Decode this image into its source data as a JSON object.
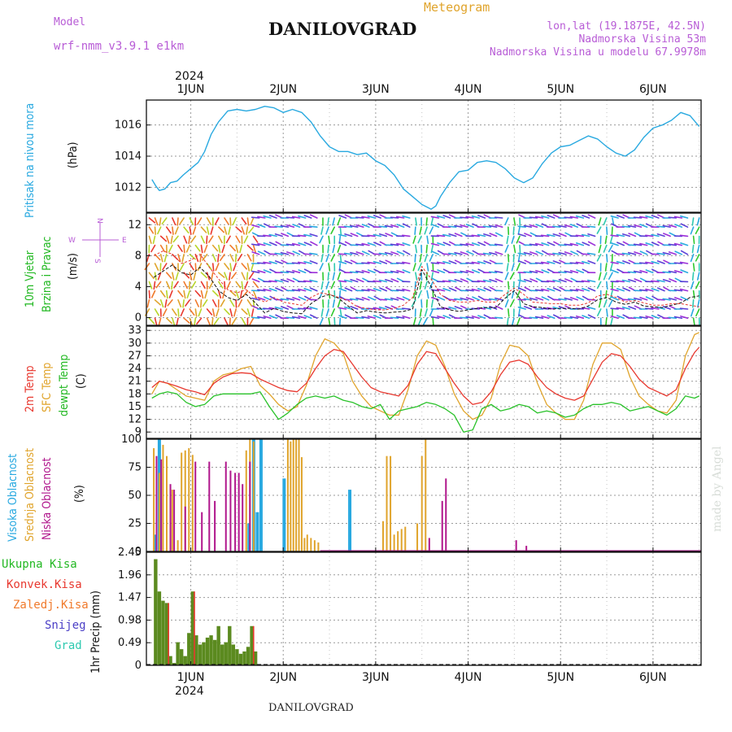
{
  "header": {
    "model_label": "Model",
    "model_name": "wrf-nmm_v3.9.1 e1km",
    "station": "DANILOVGRAD",
    "product": "Meteogram",
    "lonlat": "lon,lat (19.1875E, 42.5N)",
    "altitude": "Nadmorska Visina 53m",
    "model_altitude": "Nadmorska Visina u modelu 67.9978m",
    "credit": "made by Angel",
    "footer_station": "DANILOVGRAD"
  },
  "colors": {
    "pressure": "#29a9e0",
    "t2m": "#e8382f",
    "tsfc": "#e0a42c",
    "dewpt": "#29c229",
    "high_cloud": "#29a9e0",
    "mid_cloud": "#e0a42c",
    "low_cloud": "#b0168c",
    "total_precip": "#5b8a1f",
    "convective": "#e8382f",
    "frozen": "#f07a2c",
    "snow": "#4b3fc6",
    "hail": "#2ec9b0",
    "wind_label": "#22b822",
    "windrose": "#b85cd6"
  },
  "time_axis": {
    "year": "2024",
    "day_labels": [
      "1JUN",
      "2JUN",
      "3JUN",
      "4JUN",
      "5JUN",
      "6JUN"
    ]
  },
  "windrose": {
    "n": "N",
    "s": "S",
    "e": "E",
    "w": "W"
  },
  "chart_data": [
    {
      "type": "line",
      "panel": "pressure",
      "ylabel_main": "Pritisak na nivou mora",
      "unit": "(hPa)",
      "yticks": [
        "1012",
        "1014",
        "1016"
      ],
      "ylim": [
        1010.4,
        1017.6
      ],
      "x": [
        0.58,
        0.62,
        0.66,
        0.72,
        0.78,
        0.85,
        0.92,
        1.0,
        1.08,
        1.15,
        1.22,
        1.3,
        1.4,
        1.5,
        1.6,
        1.7,
        1.8,
        1.9,
        2.0,
        2.1,
        2.2,
        2.3,
        2.4,
        2.5,
        2.6,
        2.7,
        2.8,
        2.9,
        3.0,
        3.1,
        3.2,
        3.3,
        3.4,
        3.5,
        3.6,
        3.65,
        3.7,
        3.8,
        3.9,
        4.0,
        4.1,
        4.2,
        4.3,
        4.4,
        4.5,
        4.6,
        4.7,
        4.8,
        4.9,
        5.0,
        5.1,
        5.2,
        5.3,
        5.4,
        5.5,
        5.6,
        5.7,
        5.8,
        5.9,
        6.0,
        6.1,
        6.2,
        6.3,
        6.4,
        6.5
      ],
      "values": [
        1012.5,
        1012.1,
        1011.8,
        1011.9,
        1012.3,
        1012.4,
        1012.8,
        1013.2,
        1013.6,
        1014.3,
        1015.4,
        1016.2,
        1016.9,
        1017.0,
        1016.9,
        1017.0,
        1017.2,
        1017.1,
        1016.8,
        1017.0,
        1016.8,
        1016.2,
        1015.3,
        1014.6,
        1014.3,
        1014.3,
        1014.1,
        1014.2,
        1013.7,
        1013.4,
        1012.8,
        1011.9,
        1011.4,
        1010.9,
        1010.6,
        1010.8,
        1011.4,
        1012.3,
        1013.0,
        1013.1,
        1013.6,
        1013.7,
        1013.6,
        1013.2,
        1012.6,
        1012.3,
        1012.6,
        1013.5,
        1014.2,
        1014.6,
        1014.7,
        1015.0,
        1015.3,
        1015.1,
        1014.6,
        1014.2,
        1014.0,
        1014.4,
        1015.2,
        1015.8,
        1016.0,
        1016.3,
        1016.8,
        1016.6,
        1015.9
      ],
      "series": [
        {
          "name": "Pritisak na nivou mora"
        }
      ]
    },
    {
      "type": "line",
      "panel": "wind",
      "ylabel_main": "10m Vjetar",
      "ylabel_sub": "Brzina i Pravac",
      "unit": "(m/s)",
      "yticks": [
        "0",
        "4",
        "8",
        "12"
      ],
      "ylim": [
        -1,
        13.5
      ],
      "x": [
        0.6,
        0.7,
        0.8,
        0.9,
        1.0,
        1.1,
        1.2,
        1.3,
        1.4,
        1.5,
        1.6,
        1.7,
        1.8,
        1.9,
        2.0,
        2.1,
        2.2,
        2.3,
        2.4,
        2.5,
        2.6,
        2.7,
        2.8,
        2.9,
        3.0,
        3.1,
        3.2,
        3.3,
        3.4,
        3.5,
        3.6,
        3.7,
        3.8,
        3.9,
        4.0,
        4.1,
        4.2,
        4.3,
        4.4,
        4.5,
        4.6,
        4.7,
        4.8,
        4.9,
        5.0,
        5.1,
        5.2,
        5.3,
        5.4,
        5.5,
        5.6,
        5.7,
        5.8,
        5.9,
        6.0,
        6.1,
        6.2,
        6.3,
        6.4,
        6.5
      ],
      "series": [
        {
          "values": [
            5.2,
            6.0,
            6.8,
            5.8,
            5.5,
            6.5,
            5.3,
            3.5,
            2.6,
            2.2,
            3.0,
            1.9,
            0.6,
            1.2,
            0.8,
            0.6,
            0.5,
            1.8,
            2.6,
            3.0,
            2.5,
            1.5,
            0.6,
            0.9,
            0.7,
            0.6,
            0.7,
            0.8,
            1.1,
            6.2,
            4.0,
            1.4,
            1.0,
            0.8,
            1.0,
            1.2,
            1.3,
            1.3,
            2.5,
            3.5,
            1.8,
            1.4,
            1.3,
            1.1,
            1.2,
            1.2,
            1.1,
            1.5,
            2.3,
            2.6,
            2.0,
            1.7,
            2.0,
            1.5,
            1.4,
            1.3,
            1.6,
            1.9,
            2.6,
            2.8
          ]
        },
        {
          "values": [
            8.0,
            8.6,
            8.2,
            7.0,
            7.4,
            8.2,
            6.5,
            5.0,
            3.6,
            3.2,
            3.6,
            2.6,
            2.0,
            2.6,
            2.0,
            1.8,
            1.6,
            2.6,
            3.2,
            3.0,
            2.6,
            2.2,
            1.4,
            1.2,
            1.0,
            1.0,
            1.2,
            1.6,
            2.6,
            6.6,
            5.0,
            3.0,
            2.2,
            2.0,
            2.0,
            2.2,
            2.0,
            2.0,
            3.0,
            3.8,
            3.0,
            2.0,
            1.9,
            1.8,
            1.8,
            1.6,
            1.6,
            1.9,
            2.8,
            3.0,
            2.6,
            2.0,
            2.2,
            1.9,
            1.6,
            1.6,
            1.8,
            1.8,
            1.6,
            1.4
          ]
        }
      ]
    },
    {
      "type": "line",
      "panel": "temperature",
      "ylabel_main": "2m Temp",
      "ylabel_sfc": "SFC Temp",
      "ylabel_dew": "dewpt Temp",
      "unit": "(C)",
      "yticks": [
        "9",
        "12",
        "15",
        "18",
        "21",
        "24",
        "27",
        "30",
        "33"
      ],
      "ylim": [
        7.5,
        34
      ],
      "x": [
        0.58,
        0.66,
        0.75,
        0.85,
        0.95,
        1.05,
        1.15,
        1.25,
        1.35,
        1.45,
        1.55,
        1.65,
        1.75,
        1.85,
        1.95,
        2.05,
        2.15,
        2.25,
        2.35,
        2.45,
        2.55,
        2.65,
        2.75,
        2.85,
        2.95,
        3.05,
        3.15,
        3.25,
        3.35,
        3.45,
        3.55,
        3.65,
        3.75,
        3.85,
        3.95,
        4.05,
        4.15,
        4.25,
        4.35,
        4.45,
        4.55,
        4.65,
        4.75,
        4.85,
        4.95,
        5.05,
        5.15,
        5.25,
        5.35,
        5.45,
        5.55,
        5.65,
        5.75,
        5.85,
        5.95,
        6.05,
        6.15,
        6.25,
        6.35,
        6.45,
        6.5
      ],
      "series": [
        {
          "name": "2m Temp",
          "values": [
            19.5,
            21.0,
            20.5,
            19.8,
            19.0,
            18.5,
            17.8,
            20.5,
            22.0,
            22.8,
            23.0,
            22.8,
            21.5,
            20.5,
            19.5,
            18.8,
            18.5,
            20.5,
            24.0,
            27.0,
            28.5,
            28.0,
            25.0,
            22.0,
            19.5,
            18.5,
            18.0,
            17.5,
            20.0,
            25.0,
            28.0,
            27.5,
            24.0,
            20.5,
            17.5,
            15.5,
            16.0,
            18.5,
            22.5,
            25.5,
            26.0,
            25.0,
            22.0,
            19.5,
            18.0,
            17.0,
            16.5,
            17.5,
            21.5,
            25.5,
            27.5,
            27.0,
            24.5,
            21.5,
            19.5,
            18.5,
            17.5,
            19.0,
            24.0,
            27.8,
            29.0
          ]
        },
        {
          "name": "SFC Temp",
          "values": [
            18.0,
            21.0,
            20.5,
            19.0,
            17.5,
            17.0,
            16.5,
            21.0,
            22.5,
            23.0,
            24.0,
            24.5,
            20.0,
            18.0,
            15.5,
            14.0,
            15.0,
            20.0,
            27.0,
            31.0,
            30.0,
            27.5,
            21.0,
            17.5,
            15.0,
            14.0,
            13.0,
            13.0,
            19.0,
            27.0,
            30.5,
            29.5,
            24.5,
            18.0,
            14.0,
            12.0,
            13.0,
            17.0,
            25.0,
            29.5,
            29.0,
            27.0,
            20.5,
            15.5,
            13.5,
            12.0,
            12.0,
            16.5,
            25.0,
            30.0,
            30.0,
            28.5,
            22.0,
            17.5,
            15.5,
            14.0,
            13.5,
            16.5,
            27.0,
            32.0,
            32.5
          ]
        },
        {
          "name": "dewpt Temp",
          "values": [
            17.0,
            18.0,
            18.5,
            18.0,
            16.0,
            15.0,
            15.5,
            17.5,
            18.0,
            18.0,
            18.0,
            18.0,
            18.5,
            15.0,
            12.0,
            13.5,
            15.5,
            17.0,
            17.5,
            17.0,
            17.5,
            16.5,
            16.0,
            15.0,
            14.5,
            15.5,
            12.0,
            14.0,
            14.5,
            15.0,
            16.0,
            15.5,
            14.5,
            13.0,
            9.0,
            9.5,
            14.5,
            15.5,
            14.0,
            14.5,
            15.5,
            15.0,
            13.5,
            14.0,
            13.5,
            12.5,
            13.0,
            14.5,
            15.5,
            15.5,
            16.0,
            15.5,
            14.0,
            14.5,
            15.0,
            14.0,
            13.0,
            14.5,
            17.5,
            17.0,
            17.5
          ]
        }
      ]
    },
    {
      "type": "bar",
      "panel": "cloud",
      "ylabel_high": "Visoka Oblacnost",
      "ylabel_mid": "Srednja Oblacnost",
      "ylabel_low": "Niska Oblacnost",
      "unit": "(%)",
      "yticks": [
        "0",
        "25",
        "50",
        "75",
        "100"
      ],
      "ylim": [
        0,
        100
      ],
      "series": [
        {
          "name": "Visoka Oblacnost",
          "x": [
            0.62,
            0.66,
            1.63,
            1.68,
            1.72,
            1.76,
            2.01,
            2.72
          ],
          "values": [
            15,
            100,
            25,
            100,
            35,
            100,
            65,
            55
          ]
        },
        {
          "name": "Srednja Oblacnost",
          "x": [
            0.6,
            0.66,
            0.7,
            0.74,
            0.8,
            0.86,
            0.9,
            0.94,
            0.98,
            1.02,
            1.6,
            1.64,
            1.68,
            2.05,
            2.08,
            2.11,
            2.14,
            2.17,
            2.2,
            2.23,
            2.26,
            2.3,
            2.34,
            2.38,
            3.08,
            3.12,
            3.16,
            3.2,
            3.24,
            3.28,
            3.32,
            3.45,
            3.5,
            3.54
          ],
          "values": [
            92,
            70,
            95,
            85,
            55,
            10,
            88,
            90,
            92,
            86,
            90,
            100,
            98,
            100,
            98,
            100,
            100,
            100,
            84,
            12,
            15,
            12,
            10,
            8,
            27,
            85,
            85,
            15,
            18,
            20,
            22,
            25,
            85,
            100
          ]
        },
        {
          "name": "Niska Oblacnost",
          "x": [
            0.63,
            0.68,
            0.78,
            0.82,
            0.94,
            1.05,
            1.12,
            1.2,
            1.26,
            1.38,
            1.43,
            1.48,
            1.52,
            1.56,
            1.64,
            3.58,
            3.72,
            3.76,
            4.52,
            4.63
          ],
          "values": [
            85,
            82,
            60,
            55,
            40,
            80,
            35,
            80,
            45,
            80,
            72,
            70,
            70,
            60,
            80,
            12,
            45,
            65,
            10,
            5
          ]
        }
      ]
    },
    {
      "type": "bar",
      "panel": "precip",
      "ylabel_total": "Ukupna Kisa",
      "ylabel_conv": "Konvek.Kisa",
      "ylabel_frozen": "Zaledj.Kisa",
      "ylabel_snow": "Snijeg",
      "ylabel_hail": "Grad",
      "unit": "1hr Precip (mm)",
      "yticks": [
        "0",
        "0.49",
        "0.98",
        "1.47",
        "1.96",
        "2.45"
      ],
      "ylim": [
        0,
        2.45
      ],
      "series": [
        {
          "name": "Ukupna Kisa",
          "x": [
            0.62,
            0.66,
            0.7,
            0.74,
            0.78,
            0.82,
            0.86,
            0.9,
            0.94,
            0.98,
            1.02,
            1.06,
            1.1,
            1.14,
            1.18,
            1.22,
            1.26,
            1.3,
            1.34,
            1.38,
            1.42,
            1.46,
            1.5,
            1.54,
            1.58,
            1.62,
            1.66,
            1.7
          ],
          "values": [
            2.3,
            1.6,
            1.4,
            1.35,
            0.2,
            0.05,
            0.5,
            0.35,
            0.2,
            0.7,
            1.6,
            0.65,
            0.45,
            0.5,
            0.6,
            0.65,
            0.55,
            0.85,
            0.45,
            0.5,
            0.85,
            0.45,
            0.35,
            0.25,
            0.3,
            0.4,
            0.85,
            0.3
          ]
        },
        {
          "name": "Konvek.Kisa",
          "x": [
            0.74,
            1.02,
            1.66
          ],
          "values": [
            1.35,
            1.6,
            0.85
          ]
        }
      ]
    }
  ]
}
